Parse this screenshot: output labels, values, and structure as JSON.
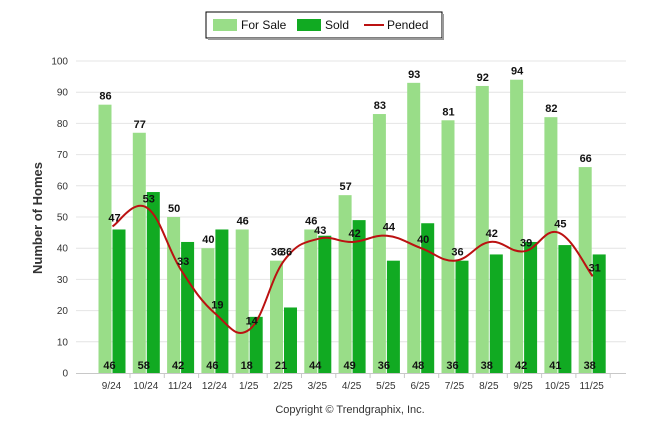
{
  "chart_data": {
    "type": "bar",
    "ylabel": "Number of Homes",
    "xlabel": "",
    "ylim": [
      0,
      100
    ],
    "yticks": [
      0,
      10,
      20,
      30,
      40,
      50,
      60,
      70,
      80,
      90,
      100
    ],
    "grid": true,
    "legend_position": "top-center",
    "categories": [
      "9/24",
      "10/24",
      "11/24",
      "12/24",
      "1/25",
      "2/25",
      "3/25",
      "4/25",
      "5/25",
      "6/25",
      "7/25",
      "8/25",
      "9/25",
      "10/25",
      "11/25"
    ],
    "series": [
      {
        "name": "For Sale",
        "type": "bar",
        "color": "#99dd88",
        "values": [
          86,
          77,
          50,
          40,
          46,
          36,
          46,
          57,
          83,
          93,
          81,
          92,
          94,
          82,
          66
        ]
      },
      {
        "name": "Sold",
        "type": "bar",
        "color": "#11aa22",
        "values": [
          46,
          58,
          42,
          46,
          18,
          21,
          44,
          49,
          36,
          48,
          36,
          38,
          42,
          41,
          38
        ]
      },
      {
        "name": "Pended",
        "type": "line",
        "color": "#bb1111",
        "values": [
          47,
          53,
          33,
          19,
          14,
          36,
          43,
          42,
          44,
          40,
          36,
          42,
          39,
          45,
          31
        ]
      }
    ],
    "footer": "Copyright © Trendgraphix, Inc."
  }
}
